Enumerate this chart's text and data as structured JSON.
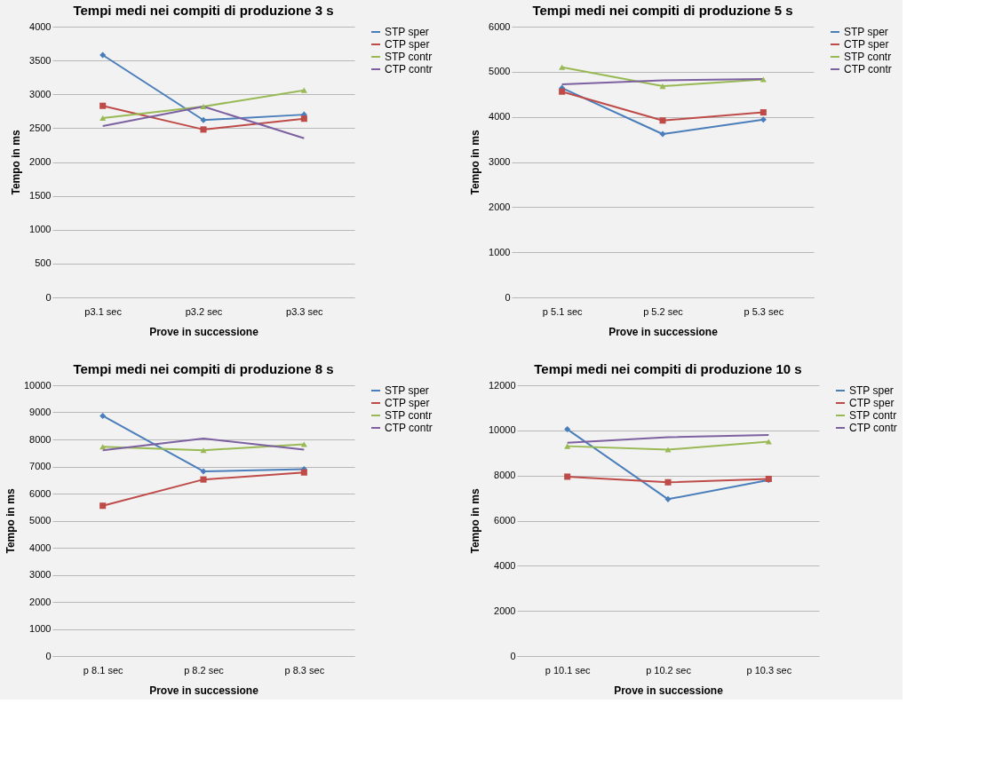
{
  "chart_data": [
    {
      "type": "line",
      "title": "Tempi medi nei compiti di produzione 3 s",
      "xlabel": "Prove in successione",
      "ylabel": "Tempo in ms",
      "categories": [
        "p3.1 sec",
        "p3.2 sec",
        "p3.3 sec"
      ],
      "ylim": [
        0,
        4000
      ],
      "yticks": [
        0,
        500,
        1000,
        1500,
        2000,
        2500,
        3000,
        3500,
        4000
      ],
      "grid": "y",
      "legend": "right",
      "series": [
        {
          "name": "STP sper",
          "color": "#4a7ebb",
          "marker": "diamond",
          "values": [
            3580,
            2620,
            2700
          ]
        },
        {
          "name": "CTP sper",
          "color": "#be4b48",
          "marker": "square",
          "values": [
            2830,
            2480,
            2640
          ]
        },
        {
          "name": "STP contr",
          "color": "#98b954",
          "marker": "triangle",
          "values": [
            2650,
            2820,
            3060
          ]
        },
        {
          "name": "CTP contr",
          "color": "#7d60a0",
          "marker": "none",
          "values": [
            2530,
            2820,
            2350
          ]
        }
      ]
    },
    {
      "type": "line",
      "title": "Tempi medi nei compiti di produzione 5 s",
      "xlabel": "Prove in successione",
      "ylabel": "Tempo in ms",
      "categories": [
        "p 5.1 sec",
        "p 5.2 sec",
        "p 5.3 sec"
      ],
      "ylim": [
        0,
        6000
      ],
      "yticks": [
        0,
        1000,
        2000,
        3000,
        4000,
        5000,
        6000
      ],
      "grid": "y",
      "legend": "right",
      "series": [
        {
          "name": "STP sper",
          "color": "#4a7ebb",
          "marker": "diamond",
          "values": [
            4640,
            3620,
            3940
          ]
        },
        {
          "name": "CTP sper",
          "color": "#be4b48",
          "marker": "square",
          "values": [
            4560,
            3920,
            4100
          ]
        },
        {
          "name": "STP contr",
          "color": "#98b954",
          "marker": "triangle",
          "values": [
            5100,
            4680,
            4830
          ]
        },
        {
          "name": "CTP contr",
          "color": "#7d60a0",
          "marker": "none",
          "values": [
            4720,
            4810,
            4840
          ]
        }
      ]
    },
    {
      "type": "line",
      "title": "Tempi medi nei compiti di produzione 8 s",
      "xlabel": "Prove in successione",
      "ylabel": "Tempo in ms",
      "categories": [
        "p 8.1 sec",
        "p 8.2 sec",
        "p 8.3 sec"
      ],
      "ylim": [
        0,
        10000
      ],
      "yticks": [
        0,
        1000,
        2000,
        3000,
        4000,
        5000,
        6000,
        7000,
        8000,
        9000,
        10000
      ],
      "grid": "y",
      "legend": "right",
      "series": [
        {
          "name": "STP sper",
          "color": "#4a7ebb",
          "marker": "diamond",
          "values": [
            8870,
            6820,
            6900
          ]
        },
        {
          "name": "CTP sper",
          "color": "#be4b48",
          "marker": "square",
          "values": [
            5550,
            6520,
            6780
          ]
        },
        {
          "name": "STP contr",
          "color": "#98b954",
          "marker": "triangle",
          "values": [
            7730,
            7600,
            7820
          ]
        },
        {
          "name": "CTP contr",
          "color": "#7d60a0",
          "marker": "none",
          "values": [
            7600,
            8030,
            7620
          ]
        }
      ]
    },
    {
      "type": "line",
      "title": "Tempi medi nei compiti di produzione 10 s",
      "xlabel": "Prove in successione",
      "ylabel": "Tempo in ms",
      "categories": [
        "p 10.1 sec",
        "p 10.2 sec",
        "p 10.3 sec"
      ],
      "ylim": [
        0,
        12000
      ],
      "yticks": [
        0,
        2000,
        4000,
        6000,
        8000,
        10000,
        12000
      ],
      "grid": "y",
      "legend": "right",
      "series": [
        {
          "name": "STP sper",
          "color": "#4a7ebb",
          "marker": "diamond",
          "values": [
            10050,
            6950,
            7800
          ]
        },
        {
          "name": "CTP sper",
          "color": "#be4b48",
          "marker": "square",
          "values": [
            7950,
            7700,
            7850
          ]
        },
        {
          "name": "STP contr",
          "color": "#98b954",
          "marker": "triangle",
          "values": [
            9300,
            9150,
            9500
          ]
        },
        {
          "name": "CTP contr",
          "color": "#7d60a0",
          "marker": "none",
          "values": [
            9450,
            9700,
            9800
          ]
        }
      ]
    }
  ]
}
